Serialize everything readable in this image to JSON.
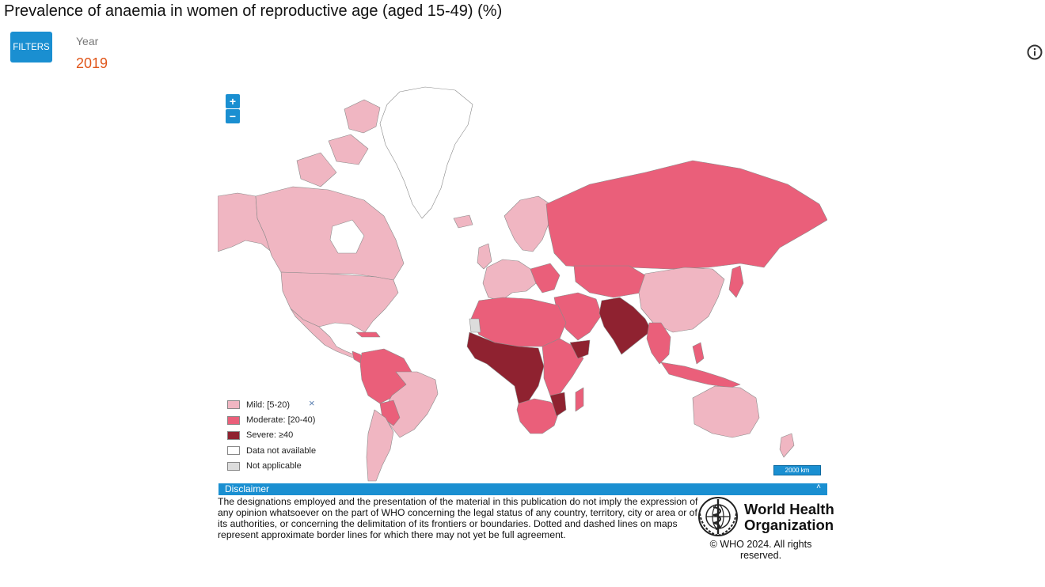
{
  "page": {
    "title": "Prevalence of anaemia in women of reproductive age (aged 15-49) (%)"
  },
  "filters": {
    "button_label": "FILTERS",
    "year_label": "Year",
    "year_value": "2019"
  },
  "map_controls": {
    "zoom_in": "+",
    "zoom_out": "−",
    "scale_label": "2000 km"
  },
  "legend": {
    "close_symbol": "×",
    "items": [
      {
        "label": "Mild: [5-20)",
        "color": "#f0b6c2"
      },
      {
        "label": "Moderate: [20-40)",
        "color": "#ea5f7a"
      },
      {
        "label": "Severe: ≥40",
        "color": "#8f2230"
      },
      {
        "label": "Data not available",
        "color": "#ffffff"
      },
      {
        "label": "Not applicable",
        "color": "#dcdcdc"
      }
    ]
  },
  "disclaimer": {
    "heading": "Disclaimer",
    "caret": "˄",
    "text": "The designations employed and the presentation of the material in this publication do not imply the expression of any opinion whatsoever on the part of WHO concerning the legal status of any country, territory, city or area or of its authorities, or concerning the delimitation of its frontiers or boundaries. Dotted and dashed lines on maps represent approximate border lines for which there may not yet be full agreement.",
    "copyright": "© WHO 2024. All rights reserved."
  },
  "who_logo": {
    "line1": "World Health",
    "line2": "Organization"
  },
  "colors": {
    "accent": "#1a8fd1",
    "year": "#e0561a",
    "mild": "#f0b6c2",
    "moderate": "#ea5f7a",
    "severe": "#8f2230",
    "no_data": "#ffffff",
    "not_applicable": "#dcdcdc"
  }
}
